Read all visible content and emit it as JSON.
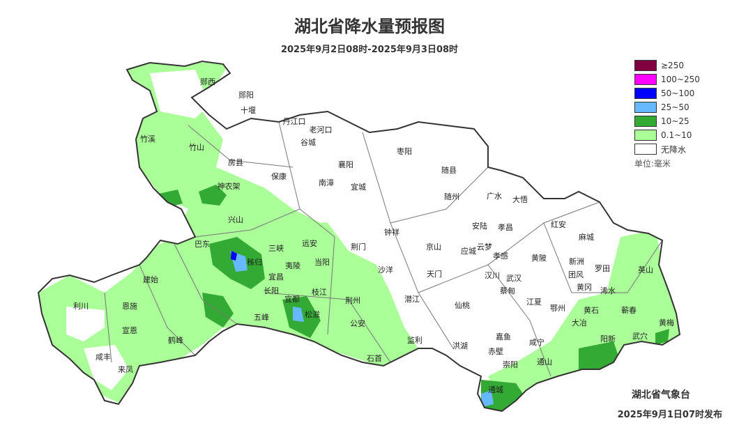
{
  "title": "湖北省降水量预报图",
  "subtitle": "2025年9月2日08时-2025年9月3日08时",
  "legend": {
    "items": [
      {
        "label": "≥250",
        "color": "#800040"
      },
      {
        "label": "100~250",
        "color": "#ff00ff"
      },
      {
        "label": "50~100",
        "color": "#0000ff"
      },
      {
        "label": "25~50",
        "color": "#66b8ff"
      },
      {
        "label": "10~25",
        "color": "#33aa33"
      },
      {
        "label": "0.1~10",
        "color": "#aaff99"
      },
      {
        "label": "无降水",
        "color": "#ffffff"
      }
    ],
    "unit": "单位:毫米"
  },
  "issuer": "湖北省气象台",
  "issued": "2025年9月1日07时发布",
  "cities": [
    "郧西",
    "郧阳",
    "十堰",
    "丹江口",
    "老河口",
    "谷城",
    "竹溪",
    "竹山",
    "房县",
    "保康",
    "南漳",
    "襄阳",
    "宜城",
    "枣阳",
    "随县",
    "随州",
    "广水",
    "大悟",
    "神农架",
    "兴山",
    "巴东",
    "秭归",
    "三峡",
    "远安",
    "当阳",
    "荆门",
    "钟祥",
    "京山",
    "安陆",
    "孝昌",
    "红安",
    "麻城",
    "应城",
    "云梦",
    "孝感",
    "黄陂",
    "新洲",
    "罗田",
    "英山",
    "建始",
    "利川",
    "恩施",
    "宣恩",
    "鹤峰",
    "咸丰",
    "来凤",
    "五峰",
    "长阳",
    "宜昌",
    "夷陵",
    "宜都",
    "枝江",
    "松滋",
    "荆州",
    "公安",
    "石首",
    "监利",
    "沙洋",
    "天门",
    "潜江",
    "仙桃",
    "汉川",
    "武汉",
    "蔡甸",
    "江夏",
    "团风",
    "黄冈",
    "浠水",
    "鄂州",
    "黄石",
    "大冶",
    "蕲春",
    "黄梅",
    "武穴",
    "阳新",
    "嘉鱼",
    "咸宁",
    "赤壁",
    "崇阳",
    "通山",
    "通城",
    "洪湖"
  ]
}
